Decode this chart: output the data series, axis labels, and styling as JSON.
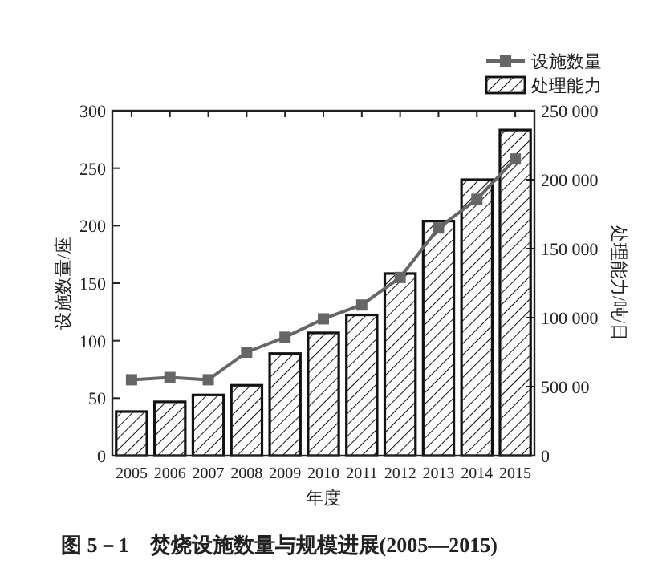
{
  "chart_data": {
    "type": "bar",
    "title": "图 5－1　焚烧设施数量与规模进展(2005—2015)",
    "xlabel": "年度",
    "ylabel": "设施数量/座",
    "y2label": "处理能力/吨/日",
    "categories": [
      "2005",
      "2006",
      "2007",
      "2008",
      "2009",
      "2010",
      "2011",
      "2012",
      "2013",
      "2014",
      "2015"
    ],
    "series": [
      {
        "name": "设施数量",
        "type": "line",
        "color": "#666666",
        "marker": "square",
        "values": [
          66,
          68,
          66,
          90,
          103,
          119,
          131,
          155,
          198,
          223,
          258
        ]
      },
      {
        "name": "处理能力",
        "axis": "y2",
        "color": "#111111",
        "values": [
          32000,
          39000,
          44000,
          51000,
          74000,
          89000,
          102000,
          132000,
          170000,
          200000,
          236000
        ]
      }
    ],
    "ylim": [
      0,
      300
    ],
    "yticks": [
      0,
      50,
      100,
      150,
      200,
      250,
      300
    ],
    "y2lim": [
      0,
      250000
    ],
    "y2ticks": [
      {
        "value": 0,
        "label": "0"
      },
      {
        "value": 50000,
        "label": "500 00"
      },
      {
        "value": 100000,
        "label": "100 000"
      },
      {
        "value": 150000,
        "label": "150 000"
      },
      {
        "value": 200000,
        "label": "200 000"
      },
      {
        "value": 250000,
        "label": "250 000"
      }
    ],
    "legend": "top right",
    "grid": false
  }
}
